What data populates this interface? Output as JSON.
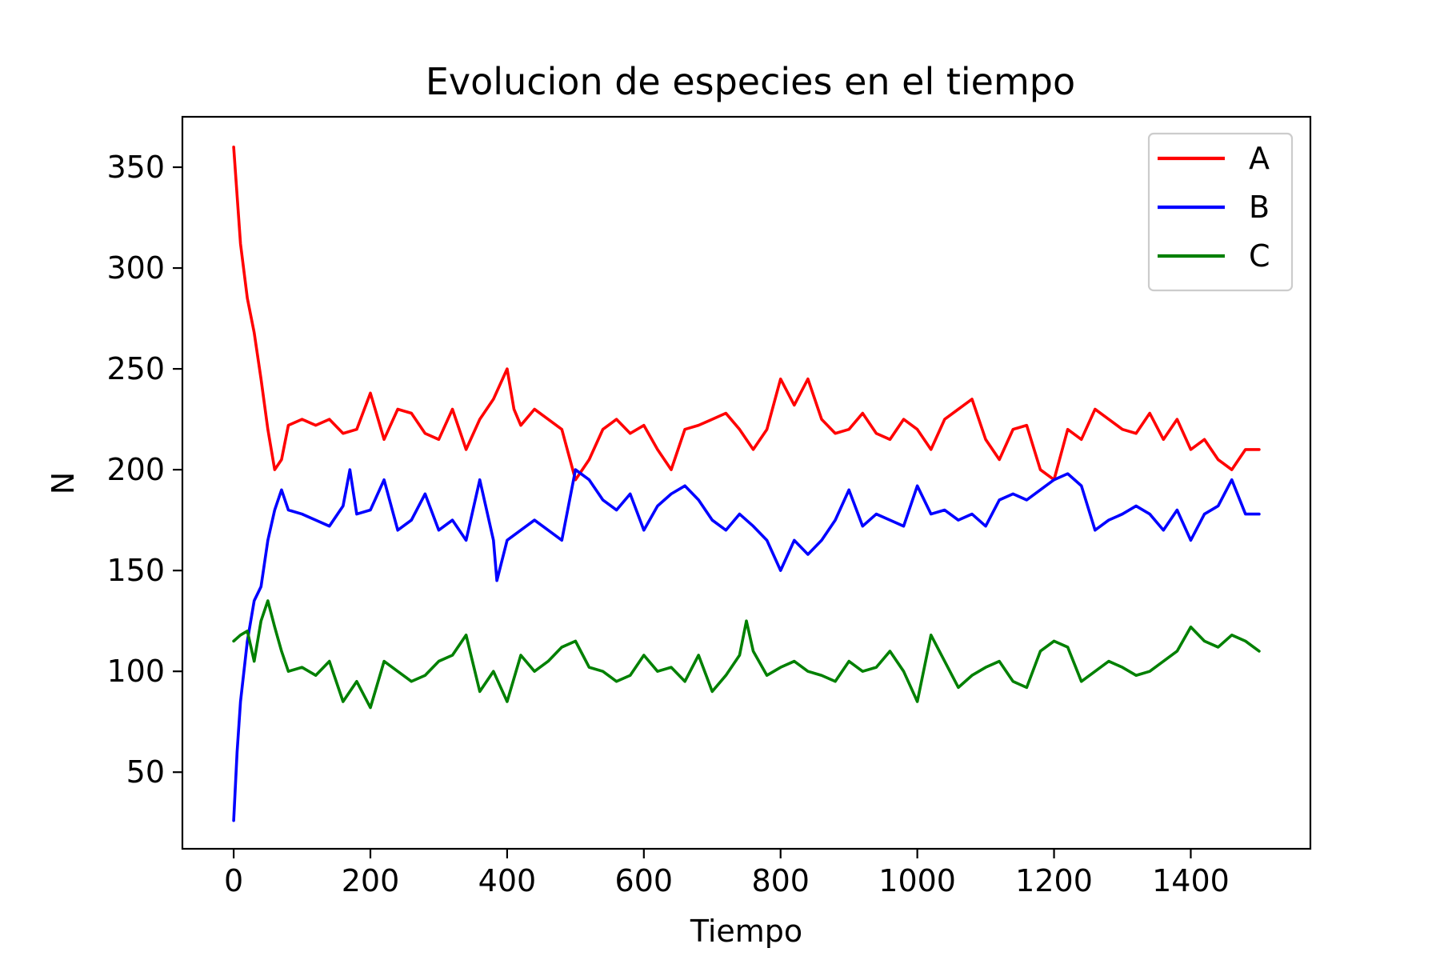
{
  "chart_data": {
    "type": "line",
    "title": "Evolucion de especies en el tiempo",
    "xlabel": "Tiempo",
    "ylabel": "N",
    "xlim": [
      -75,
      1575
    ],
    "ylim": [
      12,
      375
    ],
    "xticks": [
      0,
      200,
      400,
      600,
      800,
      1000,
      1200,
      1400
    ],
    "yticks": [
      50,
      100,
      150,
      200,
      250,
      300,
      350
    ],
    "grid": false,
    "legend": "top-right",
    "series": [
      {
        "name": "A",
        "color": "#ff0000",
        "x": [
          0,
          10,
          20,
          30,
          40,
          50,
          60,
          70,
          80,
          100,
          120,
          140,
          160,
          180,
          200,
          220,
          240,
          260,
          280,
          300,
          320,
          340,
          360,
          380,
          400,
          410,
          420,
          440,
          460,
          480,
          500,
          520,
          540,
          560,
          580,
          600,
          620,
          640,
          660,
          680,
          700,
          720,
          740,
          760,
          780,
          800,
          820,
          840,
          860,
          880,
          900,
          920,
          940,
          960,
          980,
          1000,
          1020,
          1040,
          1060,
          1080,
          1100,
          1120,
          1140,
          1160,
          1180,
          1200,
          1220,
          1240,
          1260,
          1280,
          1300,
          1320,
          1340,
          1360,
          1380,
          1400,
          1420,
          1440,
          1460,
          1480,
          1500
        ],
        "y": [
          360,
          312,
          285,
          268,
          245,
          220,
          200,
          205,
          222,
          225,
          222,
          225,
          218,
          220,
          238,
          215,
          230,
          228,
          218,
          215,
          230,
          210,
          225,
          235,
          250,
          230,
          222,
          230,
          225,
          220,
          195,
          205,
          220,
          225,
          218,
          222,
          210,
          200,
          220,
          222,
          225,
          228,
          220,
          210,
          220,
          245,
          232,
          245,
          225,
          218,
          220,
          228,
          218,
          215,
          225,
          220,
          210,
          225,
          230,
          235,
          215,
          205,
          220,
          222,
          200,
          195,
          220,
          215,
          230,
          225,
          220,
          218,
          228,
          215,
          225,
          210,
          215,
          205,
          200,
          210,
          210
        ]
      },
      {
        "name": "B",
        "color": "#0000ff",
        "x": [
          0,
          5,
          10,
          15,
          20,
          30,
          40,
          50,
          60,
          70,
          80,
          100,
          120,
          140,
          160,
          170,
          180,
          200,
          220,
          240,
          260,
          280,
          300,
          320,
          340,
          360,
          380,
          385,
          400,
          420,
          440,
          460,
          480,
          500,
          520,
          540,
          560,
          580,
          600,
          620,
          640,
          660,
          680,
          700,
          720,
          740,
          760,
          780,
          800,
          820,
          840,
          860,
          880,
          900,
          920,
          940,
          960,
          980,
          1000,
          1020,
          1040,
          1060,
          1080,
          1100,
          1120,
          1140,
          1160,
          1180,
          1200,
          1220,
          1240,
          1260,
          1280,
          1300,
          1320,
          1340,
          1360,
          1380,
          1400,
          1420,
          1440,
          1460,
          1480,
          1500
        ],
        "y": [
          26,
          60,
          85,
          100,
          115,
          135,
          142,
          165,
          180,
          190,
          180,
          178,
          175,
          172,
          182,
          200,
          178,
          180,
          195,
          170,
          175,
          188,
          170,
          175,
          165,
          195,
          165,
          145,
          165,
          170,
          175,
          170,
          165,
          200,
          195,
          185,
          180,
          188,
          170,
          182,
          188,
          192,
          185,
          175,
          170,
          178,
          172,
          165,
          150,
          165,
          158,
          165,
          175,
          190,
          172,
          178,
          175,
          172,
          192,
          178,
          180,
          175,
          178,
          172,
          185,
          188,
          185,
          190,
          195,
          198,
          192,
          170,
          175,
          178,
          182,
          178,
          170,
          180,
          165,
          178,
          182,
          195,
          178,
          178
        ]
      },
      {
        "name": "C",
        "color": "#008000",
        "x": [
          0,
          10,
          20,
          30,
          40,
          50,
          60,
          70,
          80,
          100,
          120,
          140,
          160,
          180,
          200,
          220,
          240,
          260,
          280,
          300,
          320,
          340,
          360,
          380,
          400,
          420,
          440,
          460,
          480,
          500,
          520,
          540,
          560,
          580,
          600,
          620,
          640,
          660,
          680,
          700,
          720,
          740,
          750,
          760,
          780,
          800,
          820,
          840,
          860,
          880,
          900,
          920,
          940,
          960,
          980,
          1000,
          1020,
          1040,
          1060,
          1080,
          1100,
          1120,
          1140,
          1160,
          1180,
          1200,
          1220,
          1240,
          1260,
          1280,
          1300,
          1320,
          1340,
          1360,
          1380,
          1400,
          1420,
          1440,
          1460,
          1480,
          1500
        ],
        "y": [
          115,
          118,
          120,
          105,
          125,
          135,
          122,
          110,
          100,
          102,
          98,
          105,
          85,
          95,
          82,
          105,
          100,
          95,
          98,
          105,
          108,
          118,
          90,
          100,
          85,
          108,
          100,
          105,
          112,
          115,
          102,
          100,
          95,
          98,
          108,
          100,
          102,
          95,
          108,
          90,
          98,
          108,
          125,
          110,
          98,
          102,
          105,
          100,
          98,
          95,
          105,
          100,
          102,
          110,
          100,
          85,
          118,
          105,
          92,
          98,
          102,
          105,
          95,
          92,
          110,
          115,
          112,
          95,
          100,
          105,
          102,
          98,
          100,
          105,
          110,
          122,
          115,
          112,
          118,
          115,
          110
        ]
      }
    ]
  }
}
